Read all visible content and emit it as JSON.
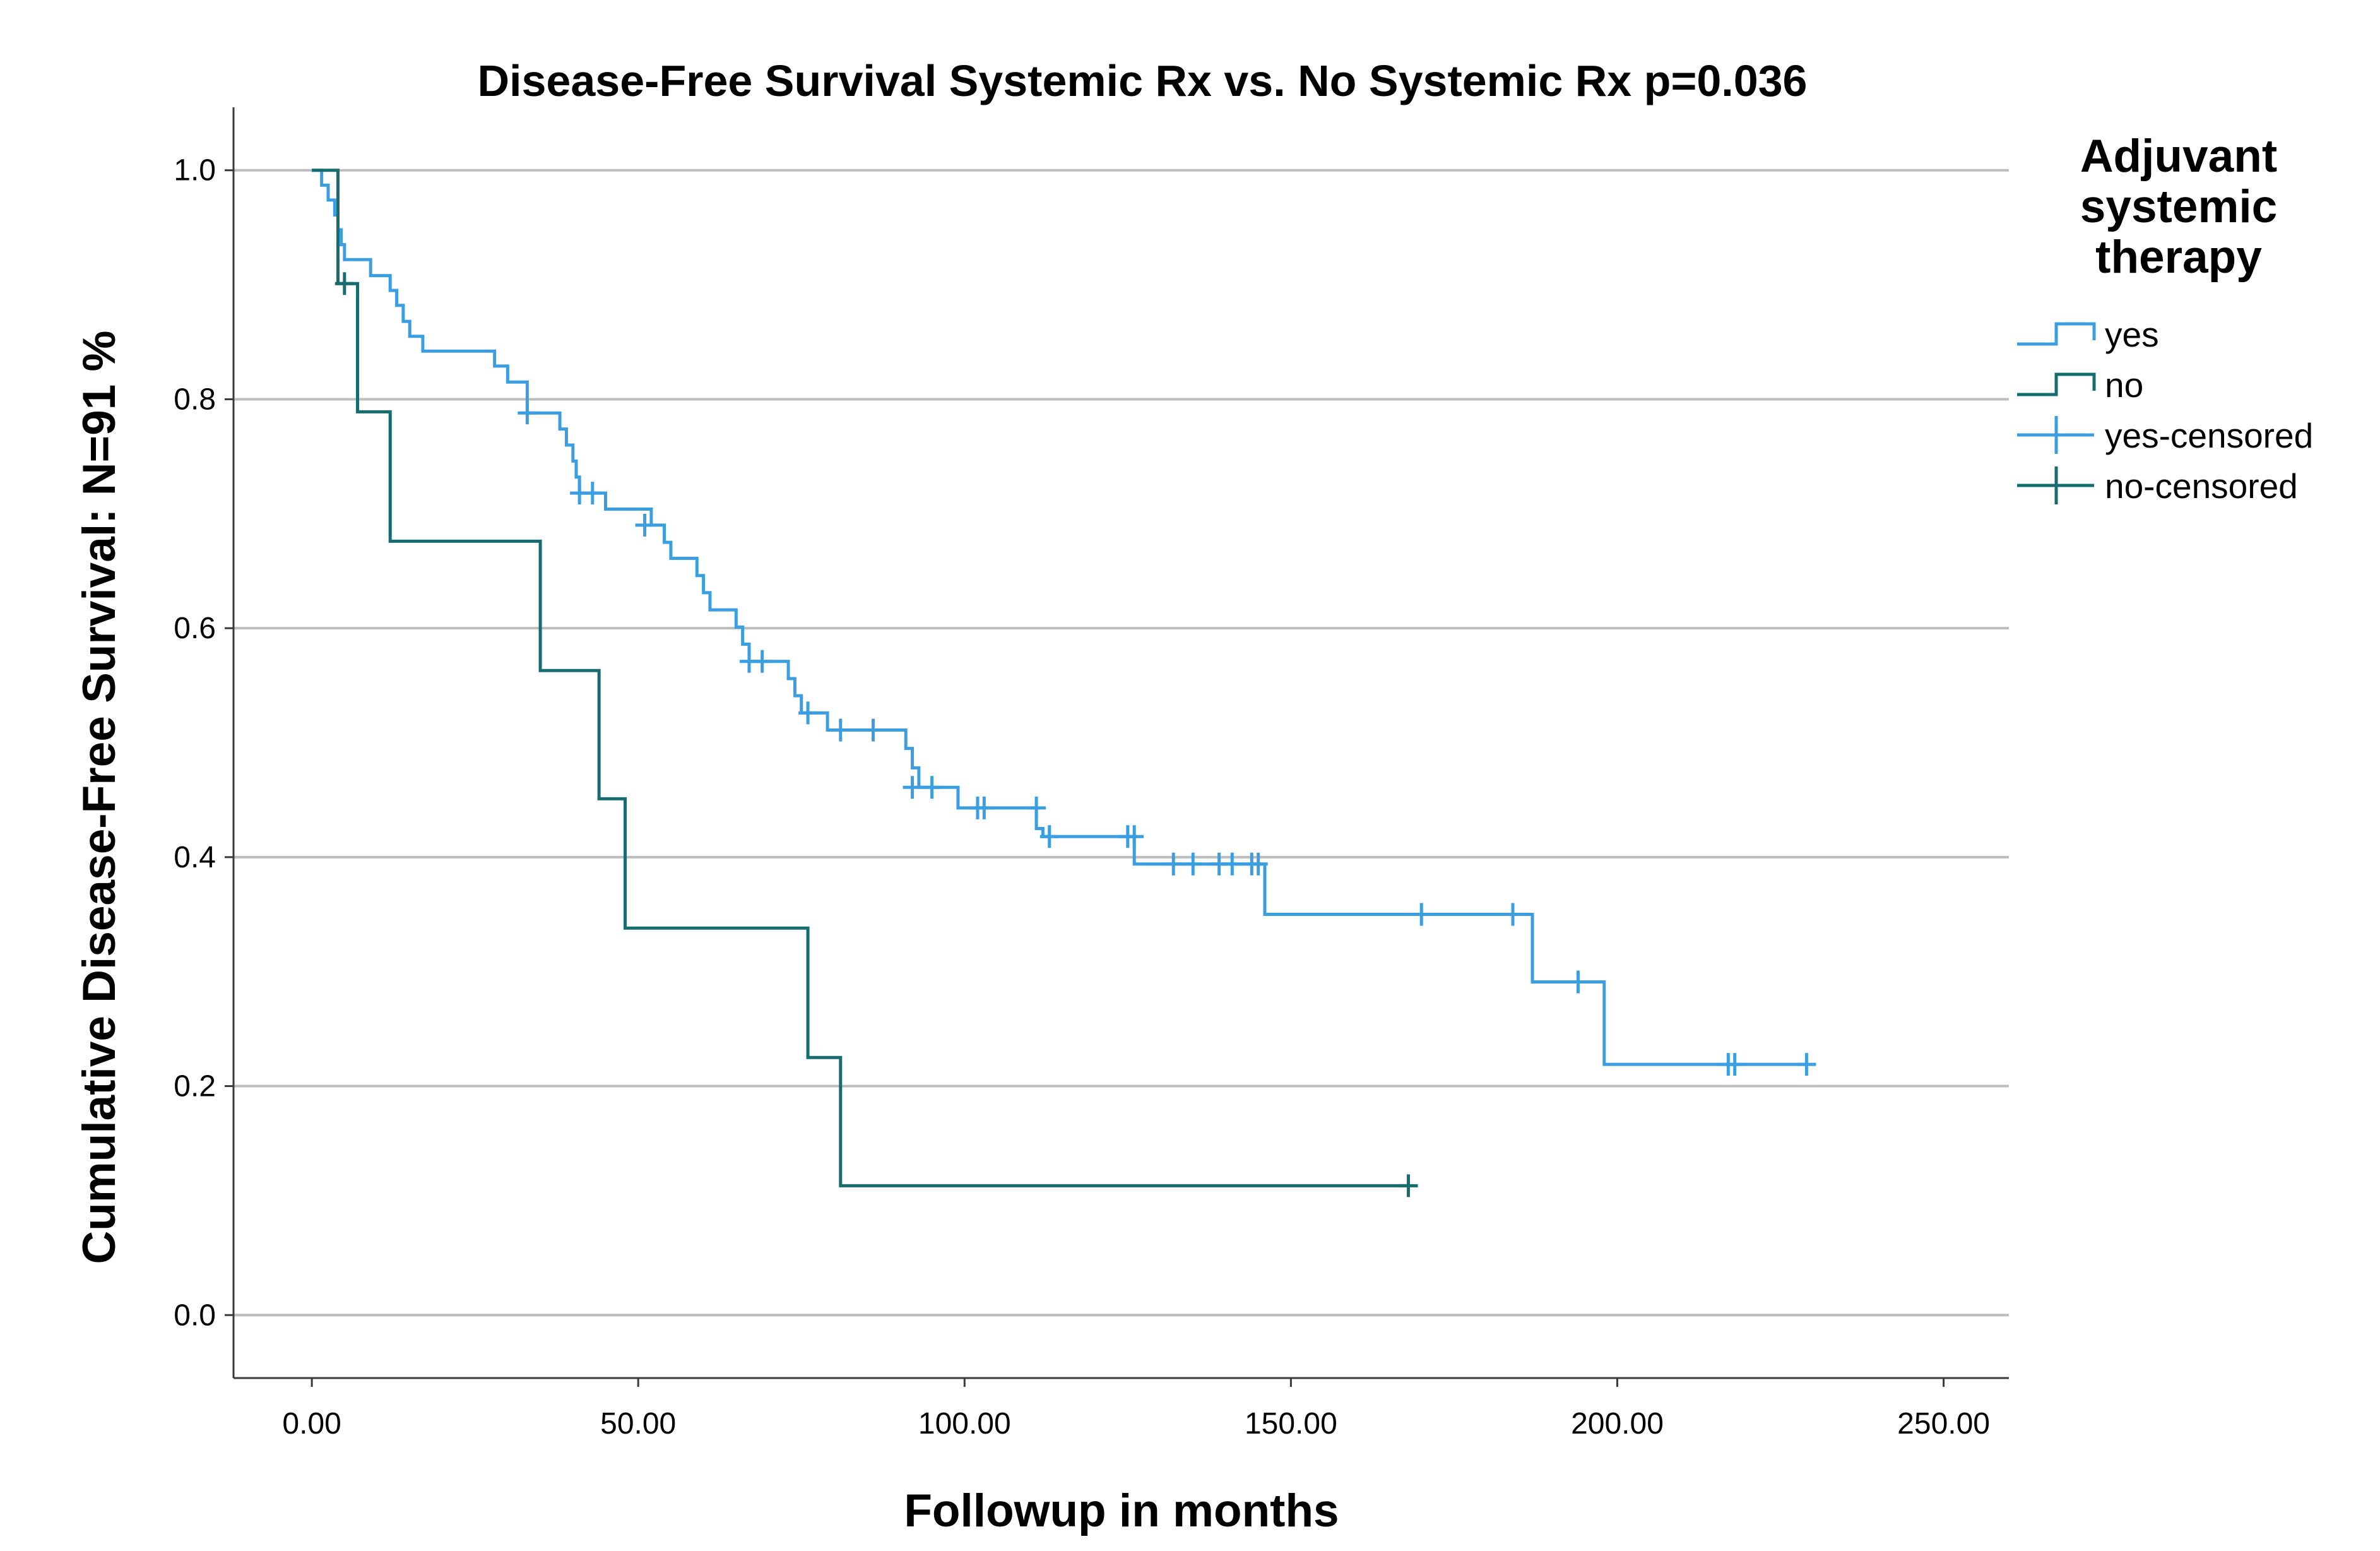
{
  "chart_data": {
    "type": "line",
    "subtype": "kaplan-meier",
    "title": "Disease-Free Survival Systemic Rx vs. No Systemic Rx p=0.036",
    "xlabel": "Followup in months",
    "ylabel": "Cumulative Disease-Free Survival: N=91  %",
    "xlim": [
      -12,
      260
    ],
    "ylim": [
      -0.055,
      1.055
    ],
    "xticks": [
      0,
      50,
      100,
      150,
      200,
      250
    ],
    "xtick_labels": [
      "0.00",
      "50.00",
      "100.00",
      "150.00",
      "200.00",
      "250.00"
    ],
    "yticks": [
      0.0,
      0.2,
      0.4,
      0.6,
      0.8,
      1.0
    ],
    "ytick_labels": [
      "0.0",
      "0.2",
      "0.4",
      "0.6",
      "0.8",
      "1.0"
    ],
    "grid": "horizontal",
    "legend": {
      "title": [
        "Adjuvant",
        "systemic",
        "therapy"
      ],
      "position": "right",
      "entries": [
        {
          "label": "yes",
          "kind": "step",
          "series": "yes"
        },
        {
          "label": "no",
          "kind": "step",
          "series": "no"
        },
        {
          "label": "yes-censored",
          "kind": "censor",
          "series": "yes"
        },
        {
          "label": "no-censored",
          "kind": "censor",
          "series": "no"
        }
      ]
    },
    "series": [
      {
        "name": "yes",
        "color": "#3b9ee0",
        "steps": [
          [
            0,
            1.0
          ],
          [
            1.5,
            0.987
          ],
          [
            2.5,
            0.974
          ],
          [
            3.5,
            0.961
          ],
          [
            4.0,
            0.948
          ],
          [
            4.5,
            0.935
          ],
          [
            5.0,
            0.922
          ],
          [
            9.0,
            0.908
          ],
          [
            12.0,
            0.895
          ],
          [
            13.0,
            0.882
          ],
          [
            14.0,
            0.868
          ],
          [
            15.0,
            0.855
          ],
          [
            17.0,
            0.842
          ],
          [
            28.0,
            0.829
          ],
          [
            30.0,
            0.815
          ],
          [
            33.0,
            0.788
          ],
          [
            38.0,
            0.774
          ],
          [
            39.0,
            0.76
          ],
          [
            40.0,
            0.746
          ],
          [
            40.5,
            0.732
          ],
          [
            41.0,
            0.718
          ],
          [
            45.0,
            0.704
          ],
          [
            52.0,
            0.69
          ],
          [
            54.0,
            0.675
          ],
          [
            55.0,
            0.661
          ],
          [
            59.0,
            0.646
          ],
          [
            60.0,
            0.631
          ],
          [
            61.0,
            0.616
          ],
          [
            65.0,
            0.601
          ],
          [
            66.0,
            0.586
          ],
          [
            67.0,
            0.571
          ],
          [
            73.0,
            0.556
          ],
          [
            74.0,
            0.541
          ],
          [
            75.0,
            0.526
          ],
          [
            79.0,
            0.511
          ],
          [
            91.0,
            0.495
          ],
          [
            92.0,
            0.478
          ],
          [
            93.0,
            0.461
          ],
          [
            99.0,
            0.443
          ],
          [
            111.0,
            0.425
          ],
          [
            112.0,
            0.418
          ],
          [
            126.0,
            0.394
          ],
          [
            146.0,
            0.35
          ],
          [
            187.0,
            0.291
          ],
          [
            198.0,
            0.219
          ],
          [
            229.0,
            0.219
          ]
        ],
        "censored": [
          [
            33,
            0.788
          ],
          [
            41,
            0.718
          ],
          [
            43,
            0.718
          ],
          [
            51,
            0.69
          ],
          [
            67,
            0.571
          ],
          [
            69,
            0.571
          ],
          [
            76,
            0.526
          ],
          [
            81,
            0.511
          ],
          [
            86,
            0.511
          ],
          [
            92,
            0.461
          ],
          [
            95,
            0.461
          ],
          [
            102,
            0.443
          ],
          [
            103,
            0.443
          ],
          [
            111,
            0.443
          ],
          [
            113,
            0.418
          ],
          [
            125,
            0.418
          ],
          [
            126,
            0.418
          ],
          [
            132,
            0.394
          ],
          [
            135,
            0.394
          ],
          [
            139,
            0.394
          ],
          [
            141,
            0.394
          ],
          [
            144,
            0.394
          ],
          [
            145,
            0.394
          ],
          [
            170,
            0.35
          ],
          [
            184,
            0.35
          ],
          [
            194,
            0.291
          ],
          [
            217,
            0.219
          ],
          [
            218,
            0.219
          ],
          [
            229,
            0.219
          ]
        ]
      },
      {
        "name": "no",
        "color": "#176c6f",
        "steps": [
          [
            0,
            1.0
          ],
          [
            4.0,
            0.901
          ],
          [
            7.0,
            0.789
          ],
          [
            12.0,
            0.676
          ],
          [
            35.0,
            0.563
          ],
          [
            44.0,
            0.451
          ],
          [
            48.0,
            0.338
          ],
          [
            76.0,
            0.225
          ],
          [
            81.0,
            0.113
          ],
          [
            168.0,
            0.113
          ]
        ],
        "censored": [
          [
            5,
            0.901
          ],
          [
            168,
            0.113
          ]
        ]
      }
    ]
  }
}
